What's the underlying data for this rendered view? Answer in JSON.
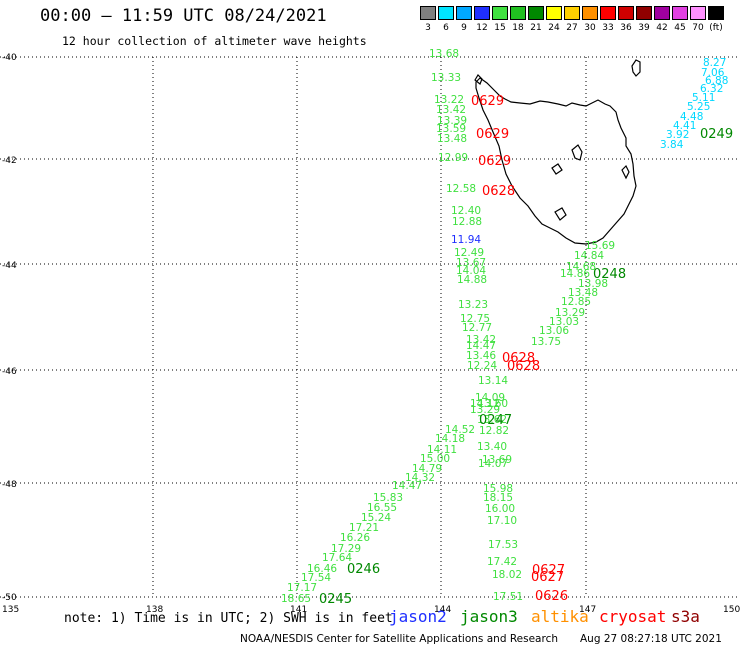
{
  "header": {
    "title": "00:00 – 11:59 UTC 08/24/2021",
    "subtitle": "12 hour collection of altimeter wave heights"
  },
  "legend": {
    "items": [
      {
        "label": "3",
        "color": "#7f7f7f"
      },
      {
        "label": "6",
        "color": "#00e5ff"
      },
      {
        "label": "9",
        "color": "#00a8ff"
      },
      {
        "label": "12",
        "color": "#1f2fff"
      },
      {
        "label": "15",
        "color": "#40e040"
      },
      {
        "label": "18",
        "color": "#20c020"
      },
      {
        "label": "21",
        "color": "#008800"
      },
      {
        "label": "24",
        "color": "#ffff00"
      },
      {
        "label": "27",
        "color": "#ffd000"
      },
      {
        "label": "30",
        "color": "#ff9000"
      },
      {
        "label": "33",
        "color": "#ff0000"
      },
      {
        "label": "36",
        "color": "#d00000"
      },
      {
        "label": "39",
        "color": "#900000"
      },
      {
        "label": "42",
        "color": "#a000a0"
      },
      {
        "label": "45",
        "color": "#e040e0"
      },
      {
        "label": "70",
        "color": "#ff90ff"
      },
      {
        "label": "(ft)",
        "color": "#000000"
      }
    ]
  },
  "axes": {
    "lon_labels": [
      "135",
      "138",
      "141",
      "144",
      "147",
      "150"
    ],
    "lat_labels": [
      "-40",
      "-42",
      "-44",
      "-46",
      "-48",
      "-50"
    ]
  },
  "times": [
    {
      "text": "0629",
      "color": "#ff0000"
    },
    {
      "text": "0629",
      "color": "#ff0000"
    },
    {
      "text": "0629",
      "color": "#ff0000"
    },
    {
      "text": "0628",
      "color": "#ff0000"
    },
    {
      "text": "0628",
      "color": "#ff0000"
    },
    {
      "text": "0628",
      "color": "#ff0000"
    },
    {
      "text": "0627",
      "color": "#ff0000"
    },
    {
      "text": "0627",
      "color": "#ff0000"
    },
    {
      "text": "0626",
      "color": "#ff0000"
    },
    {
      "text": "0249",
      "color": "#008800"
    },
    {
      "text": "0248",
      "color": "#008800"
    },
    {
      "text": "0247",
      "color": "#008800"
    },
    {
      "text": "0246",
      "color": "#008800"
    },
    {
      "text": "0245",
      "color": "#008800"
    }
  ],
  "values_cryosat_track": [
    {
      "text": "13.68"
    },
    {
      "text": "13.33"
    },
    {
      "text": "13.22"
    },
    {
      "text": "13.42"
    },
    {
      "text": "13.39"
    },
    {
      "text": "13.59"
    },
    {
      "text": "13.48"
    },
    {
      "text": "12.99"
    },
    {
      "text": "12.58"
    },
    {
      "text": "12.40"
    },
    {
      "text": "12.88"
    },
    {
      "text": "11.94",
      "color": "#1f2fff"
    },
    {
      "text": "12.49"
    },
    {
      "text": "13.67"
    },
    {
      "text": "14.04"
    },
    {
      "text": "14.88"
    },
    {
      "text": "13.23"
    },
    {
      "text": "12.75"
    },
    {
      "text": "12.77"
    },
    {
      "text": "13.42"
    },
    {
      "text": "14.47"
    },
    {
      "text": "13.46"
    },
    {
      "text": "12.24"
    },
    {
      "text": "13.14"
    },
    {
      "text": "14.09"
    },
    {
      "text": "14.12"
    },
    {
      "text": "13.60"
    },
    {
      "text": "13.29"
    },
    {
      "text": "13.62"
    },
    {
      "text": "12.82"
    },
    {
      "text": "13.40"
    },
    {
      "text": "13.69"
    },
    {
      "text": "14.07"
    },
    {
      "text": "15.98"
    },
    {
      "text": "18.15"
    },
    {
      "text": "16.00"
    },
    {
      "text": "17.10"
    },
    {
      "text": "17.53"
    },
    {
      "text": "17.42"
    },
    {
      "text": "18.02"
    },
    {
      "text": "17.51"
    }
  ],
  "values_jason3_track": [
    {
      "text": "15.69"
    },
    {
      "text": "14.84"
    },
    {
      "text": "14.68"
    },
    {
      "text": "14.86"
    },
    {
      "text": "13.98"
    },
    {
      "text": "13.48"
    },
    {
      "text": "12.85"
    },
    {
      "text": "13.29"
    },
    {
      "text": "13.03"
    },
    {
      "text": "13.06"
    },
    {
      "text": "13.75"
    },
    {
      "text": "14.52"
    },
    {
      "text": "14.18"
    },
    {
      "text": "14.11"
    },
    {
      "text": "15.00"
    },
    {
      "text": "14.79"
    },
    {
      "text": "14.32"
    },
    {
      "text": "14.47"
    },
    {
      "text": "15.83"
    },
    {
      "text": "16.55"
    },
    {
      "text": "15.24"
    },
    {
      "text": "17.21"
    },
    {
      "text": "16.26"
    },
    {
      "text": "17.29"
    },
    {
      "text": "17.64"
    },
    {
      "text": "16.46"
    },
    {
      "text": "17.54"
    },
    {
      "text": "17.17"
    },
    {
      "text": "18.65"
    }
  ],
  "values_cyan_track": [
    {
      "text": "8.27"
    },
    {
      "text": "7.06"
    },
    {
      "text": "6.88"
    },
    {
      "text": "6.32"
    },
    {
      "text": "5.11"
    },
    {
      "text": "5.25"
    },
    {
      "text": "4.48"
    },
    {
      "text": "4.41"
    },
    {
      "text": "3.92"
    },
    {
      "text": "3.84"
    }
  ],
  "footer": {
    "note": "note: 1) Time is in UTC; 2) SWH is in feet",
    "satellites": [
      {
        "name": "jason2",
        "color": "#1f2fff"
      },
      {
        "name": "jason3",
        "color": "#008800"
      },
      {
        "name": "altika",
        "color": "#ff9000"
      },
      {
        "name": "cryosat",
        "color": "#ff0000"
      },
      {
        "name": "s3a",
        "color": "#900000"
      }
    ],
    "credit": "NOAA/NESDIS Center for Satellite Applications and Research",
    "timestamp": "Aug 27 08:27:18 UTC 2021"
  }
}
